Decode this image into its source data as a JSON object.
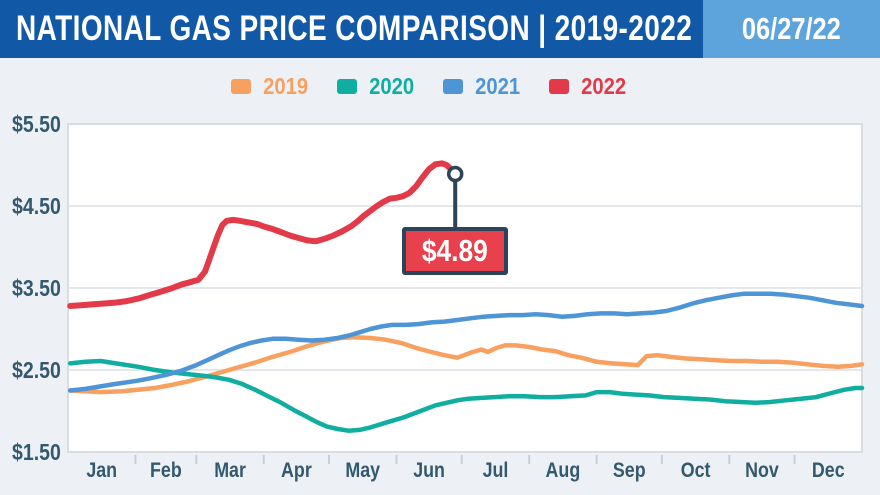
{
  "header": {
    "title": "NATIONAL GAS PRICE COMPARISON | 2019-2022",
    "date": "06/27/22"
  },
  "colors": {
    "header_bg": "#1158A7",
    "date_box_bg": "#5CA4DB",
    "page_bg": "#EDF1F6",
    "plot_bg": "#FFFFFF",
    "plot_border": "#D8DDE2",
    "gridline": "#E4E7EB",
    "tick": "#C7CED5",
    "axis_text": "#33596E",
    "title_text": "#FFFFFF",
    "callout_bg": "#E8414D",
    "callout_border": "#2C4458",
    "marker_fill": "#FFFFFF"
  },
  "chart_data": {
    "type": "line",
    "title": "NATIONAL GAS PRICE COMPARISON | 2019-2022",
    "as_of_date": "06/27/22",
    "grid": "horizontal",
    "legend_position": "top",
    "x_axis": {
      "labels": [
        "Jan",
        "Feb",
        "Mar",
        "Apr",
        "May",
        "Jun",
        "Jul",
        "Aug",
        "Sep",
        "Oct",
        "Nov",
        "Dec"
      ],
      "unit": "day_of_year",
      "range": [
        0,
        365
      ],
      "ticks_at": "month_boundaries"
    },
    "y_axis": {
      "min": 1.5,
      "max": 5.5,
      "ticks": [
        5.5,
        4.5,
        3.5,
        2.5,
        1.5
      ],
      "labels": [
        "$5.50",
        "$4.50",
        "$3.50",
        "$2.50",
        "$1.50"
      ]
    },
    "series": [
      {
        "name": "2019",
        "color": "#F7A05F",
        "points": [
          [
            1,
            2.25
          ],
          [
            8,
            2.24
          ],
          [
            15,
            2.23
          ],
          [
            25,
            2.24
          ],
          [
            32,
            2.26
          ],
          [
            40,
            2.28
          ],
          [
            48,
            2.32
          ],
          [
            55,
            2.36
          ],
          [
            62,
            2.41
          ],
          [
            70,
            2.47
          ],
          [
            78,
            2.53
          ],
          [
            86,
            2.59
          ],
          [
            94,
            2.66
          ],
          [
            102,
            2.72
          ],
          [
            110,
            2.79
          ],
          [
            118,
            2.85
          ],
          [
            125,
            2.89
          ],
          [
            132,
            2.9
          ],
          [
            139,
            2.89
          ],
          [
            146,
            2.87
          ],
          [
            153,
            2.83
          ],
          [
            160,
            2.77
          ],
          [
            167,
            2.72
          ],
          [
            173,
            2.68
          ],
          [
            179,
            2.65
          ],
          [
            185,
            2.71
          ],
          [
            190,
            2.75
          ],
          [
            193,
            2.72
          ],
          [
            197,
            2.77
          ],
          [
            201,
            2.8
          ],
          [
            206,
            2.8
          ],
          [
            212,
            2.78
          ],
          [
            218,
            2.75
          ],
          [
            224,
            2.73
          ],
          [
            230,
            2.68
          ],
          [
            236,
            2.65
          ],
          [
            243,
            2.6
          ],
          [
            250,
            2.58
          ],
          [
            256,
            2.57
          ],
          [
            262,
            2.56
          ],
          [
            266,
            2.67
          ],
          [
            271,
            2.68
          ],
          [
            277,
            2.66
          ],
          [
            284,
            2.64
          ],
          [
            291,
            2.63
          ],
          [
            298,
            2.62
          ],
          [
            305,
            2.61
          ],
          [
            312,
            2.61
          ],
          [
            319,
            2.6
          ],
          [
            326,
            2.6
          ],
          [
            333,
            2.59
          ],
          [
            340,
            2.57
          ],
          [
            347,
            2.55
          ],
          [
            354,
            2.54
          ],
          [
            360,
            2.55
          ],
          [
            365,
            2.57
          ]
        ]
      },
      {
        "name": "2020",
        "color": "#10AEA0",
        "points": [
          [
            1,
            2.58
          ],
          [
            8,
            2.6
          ],
          [
            15,
            2.61
          ],
          [
            22,
            2.58
          ],
          [
            32,
            2.54
          ],
          [
            40,
            2.5
          ],
          [
            48,
            2.47
          ],
          [
            55,
            2.45
          ],
          [
            62,
            2.43
          ],
          [
            68,
            2.41
          ],
          [
            74,
            2.38
          ],
          [
            80,
            2.33
          ],
          [
            86,
            2.26
          ],
          [
            92,
            2.18
          ],
          [
            98,
            2.1
          ],
          [
            104,
            2.01
          ],
          [
            109,
            1.94
          ],
          [
            114,
            1.87
          ],
          [
            119,
            1.81
          ],
          [
            124,
            1.78
          ],
          [
            129,
            1.76
          ],
          [
            134,
            1.77
          ],
          [
            139,
            1.8
          ],
          [
            144,
            1.84
          ],
          [
            149,
            1.88
          ],
          [
            154,
            1.92
          ],
          [
            159,
            1.97
          ],
          [
            164,
            2.02
          ],
          [
            169,
            2.07
          ],
          [
            174,
            2.1
          ],
          [
            179,
            2.13
          ],
          [
            184,
            2.15
          ],
          [
            190,
            2.16
          ],
          [
            196,
            2.17
          ],
          [
            203,
            2.18
          ],
          [
            210,
            2.18
          ],
          [
            217,
            2.17
          ],
          [
            224,
            2.17
          ],
          [
            231,
            2.18
          ],
          [
            238,
            2.19
          ],
          [
            243,
            2.23
          ],
          [
            249,
            2.23
          ],
          [
            255,
            2.21
          ],
          [
            261,
            2.2
          ],
          [
            267,
            2.19
          ],
          [
            274,
            2.17
          ],
          [
            281,
            2.16
          ],
          [
            288,
            2.15
          ],
          [
            295,
            2.14
          ],
          [
            302,
            2.12
          ],
          [
            309,
            2.11
          ],
          [
            316,
            2.1
          ],
          [
            323,
            2.11
          ],
          [
            330,
            2.13
          ],
          [
            337,
            2.15
          ],
          [
            344,
            2.17
          ],
          [
            351,
            2.22
          ],
          [
            357,
            2.26
          ],
          [
            362,
            2.28
          ],
          [
            365,
            2.28
          ]
        ]
      },
      {
        "name": "2021",
        "color": "#4E95D6",
        "points": [
          [
            1,
            2.25
          ],
          [
            8,
            2.27
          ],
          [
            15,
            2.3
          ],
          [
            22,
            2.33
          ],
          [
            32,
            2.37
          ],
          [
            38,
            2.4
          ],
          [
            45,
            2.44
          ],
          [
            52,
            2.49
          ],
          [
            59,
            2.56
          ],
          [
            64,
            2.62
          ],
          [
            69,
            2.68
          ],
          [
            74,
            2.74
          ],
          [
            79,
            2.79
          ],
          [
            84,
            2.83
          ],
          [
            89,
            2.86
          ],
          [
            94,
            2.88
          ],
          [
            100,
            2.88
          ],
          [
            106,
            2.87
          ],
          [
            112,
            2.86
          ],
          [
            118,
            2.87
          ],
          [
            124,
            2.89
          ],
          [
            129,
            2.92
          ],
          [
            134,
            2.96
          ],
          [
            139,
            3.0
          ],
          [
            144,
            3.03
          ],
          [
            149,
            3.05
          ],
          [
            155,
            3.05
          ],
          [
            161,
            3.06
          ],
          [
            167,
            3.08
          ],
          [
            173,
            3.09
          ],
          [
            179,
            3.11
          ],
          [
            185,
            3.13
          ],
          [
            191,
            3.15
          ],
          [
            197,
            3.16
          ],
          [
            203,
            3.17
          ],
          [
            209,
            3.17
          ],
          [
            215,
            3.18
          ],
          [
            221,
            3.17
          ],
          [
            227,
            3.15
          ],
          [
            233,
            3.16
          ],
          [
            239,
            3.18
          ],
          [
            245,
            3.19
          ],
          [
            251,
            3.19
          ],
          [
            257,
            3.18
          ],
          [
            263,
            3.19
          ],
          [
            269,
            3.2
          ],
          [
            275,
            3.22
          ],
          [
            281,
            3.26
          ],
          [
            287,
            3.31
          ],
          [
            293,
            3.35
          ],
          [
            299,
            3.38
          ],
          [
            305,
            3.41
          ],
          [
            311,
            3.43
          ],
          [
            317,
            3.43
          ],
          [
            323,
            3.43
          ],
          [
            329,
            3.42
          ],
          [
            335,
            3.4
          ],
          [
            341,
            3.38
          ],
          [
            347,
            3.35
          ],
          [
            353,
            3.32
          ],
          [
            359,
            3.3
          ],
          [
            365,
            3.28
          ]
        ]
      },
      {
        "name": "2022",
        "color": "#E23A48",
        "points": [
          [
            1,
            3.28
          ],
          [
            6,
            3.29
          ],
          [
            11,
            3.3
          ],
          [
            16,
            3.31
          ],
          [
            21,
            3.32
          ],
          [
            27,
            3.34
          ],
          [
            32,
            3.37
          ],
          [
            37,
            3.41
          ],
          [
            42,
            3.45
          ],
          [
            47,
            3.49
          ],
          [
            52,
            3.54
          ],
          [
            56,
            3.57
          ],
          [
            60,
            3.6
          ],
          [
            63,
            3.7
          ],
          [
            65,
            3.85
          ],
          [
            67,
            4.0
          ],
          [
            69,
            4.15
          ],
          [
            71,
            4.27
          ],
          [
            73,
            4.32
          ],
          [
            76,
            4.33
          ],
          [
            79,
            4.32
          ],
          [
            83,
            4.3
          ],
          [
            87,
            4.28
          ],
          [
            90,
            4.25
          ],
          [
            94,
            4.22
          ],
          [
            98,
            4.18
          ],
          [
            102,
            4.14
          ],
          [
            106,
            4.11
          ],
          [
            110,
            4.08
          ],
          [
            114,
            4.07
          ],
          [
            118,
            4.1
          ],
          [
            122,
            4.14
          ],
          [
            126,
            4.19
          ],
          [
            130,
            4.25
          ],
          [
            133,
            4.31
          ],
          [
            136,
            4.38
          ],
          [
            139,
            4.44
          ],
          [
            142,
            4.5
          ],
          [
            145,
            4.55
          ],
          [
            148,
            4.59
          ],
          [
            151,
            4.6
          ],
          [
            154,
            4.62
          ],
          [
            157,
            4.66
          ],
          [
            160,
            4.74
          ],
          [
            163,
            4.85
          ],
          [
            166,
            4.95
          ],
          [
            169,
            5.01
          ],
          [
            172,
            5.02
          ],
          [
            174,
            5.0
          ],
          [
            176,
            4.95
          ],
          [
            178,
            4.89
          ]
        ]
      }
    ],
    "annotation": {
      "label": "$4.89",
      "series": "2022",
      "day": 178,
      "value": 4.89,
      "marker": "open-circle"
    }
  }
}
